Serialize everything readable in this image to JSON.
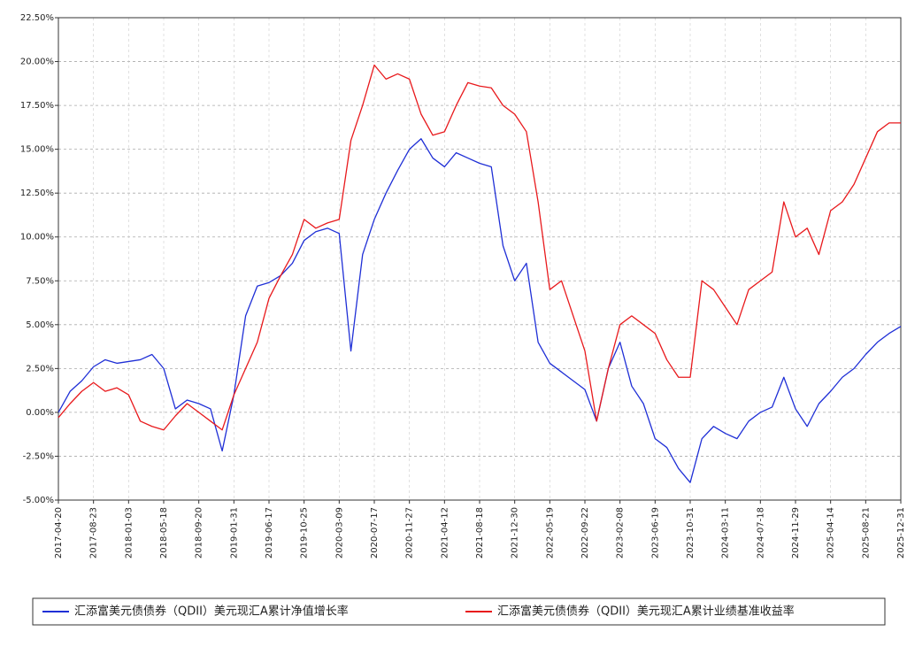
{
  "chart_data": {
    "type": "line",
    "categories": [
      "2017-04-20",
      null,
      null,
      "2017-08-23",
      null,
      null,
      "2018-01-03",
      null,
      null,
      "2018-05-18",
      null,
      null,
      "2018-09-20",
      null,
      null,
      "2019-01-31",
      null,
      null,
      "2019-06-17",
      null,
      null,
      "2019-10-25",
      null,
      null,
      "2020-03-09",
      null,
      null,
      "2020-07-17",
      null,
      null,
      "2020-11-27",
      null,
      null,
      "2021-04-12",
      null,
      null,
      "2021-08-18",
      null,
      null,
      "2021-12-30",
      null,
      null,
      "2022-05-19",
      null,
      null,
      "2022-09-22",
      null,
      null,
      "2023-02-08",
      null,
      null,
      "2023-06-19",
      null,
      null,
      "2023-10-31",
      null,
      null,
      "2024-03-11",
      null,
      null,
      "2024-07-18",
      null,
      null,
      "2024-11-29",
      null,
      null,
      "2025-04-14",
      null,
      null,
      "2025-08-21",
      null,
      null,
      "2025-12-31"
    ],
    "series": [
      {
        "name": "汇添富美元债债券（QDII）美元现汇A累计净值增长率",
        "color": "#1f2fd6",
        "values": [
          0.0,
          1.2,
          1.8,
          2.6,
          3.0,
          2.8,
          2.9,
          3.0,
          3.3,
          2.5,
          0.2,
          0.7,
          0.5,
          0.2,
          -2.2,
          1.0,
          5.5,
          7.2,
          7.4,
          7.8,
          8.5,
          9.8,
          10.3,
          10.5,
          10.2,
          3.5,
          9.0,
          11.0,
          12.5,
          13.8,
          15.0,
          15.6,
          14.5,
          14.0,
          14.8,
          14.5,
          14.2,
          14.0,
          9.5,
          7.5,
          8.5,
          4.0,
          2.8,
          2.3,
          1.8,
          1.3,
          -0.5,
          2.5,
          4.0,
          1.5,
          0.5,
          -1.5,
          -2.0,
          -3.2,
          -4.0,
          -1.5,
          -0.8,
          -1.2,
          -1.5,
          -0.5,
          0.0,
          0.3,
          2.0,
          0.2,
          -0.8,
          0.5,
          1.2,
          2.0,
          2.5,
          3.3,
          4.0,
          4.5,
          4.9
        ]
      },
      {
        "name": "汇添富美元债债券（QDII）美元现汇A累计业绩基准收益率",
        "color": "#e8191c",
        "values": [
          -0.3,
          0.5,
          1.2,
          1.7,
          1.2,
          1.4,
          1.0,
          -0.5,
          -0.8,
          -1.0,
          -0.2,
          0.5,
          0.0,
          -0.5,
          -1.0,
          1.0,
          2.5,
          4.0,
          6.5,
          7.8,
          9.0,
          11.0,
          10.5,
          10.8,
          11.0,
          15.5,
          17.5,
          19.8,
          19.0,
          19.3,
          19.0,
          17.0,
          15.8,
          16.0,
          17.5,
          18.8,
          18.6,
          18.5,
          17.5,
          17.0,
          16.0,
          12.0,
          7.0,
          7.5,
          5.5,
          3.5,
          -0.5,
          2.5,
          5.0,
          5.5,
          5.0,
          4.5,
          3.0,
          2.0,
          2.0,
          7.5,
          7.0,
          6.0,
          5.0,
          7.0,
          7.5,
          8.0,
          12.0,
          10.0,
          10.5,
          9.0,
          11.5,
          12.0,
          13.0,
          14.5,
          16.0,
          16.5,
          16.5
        ]
      }
    ],
    "ylim": [
      -5,
      22.5
    ],
    "yticks": [
      {
        "value": -5,
        "label": "-5.00%"
      },
      {
        "value": -2.5,
        "label": "-2.50%"
      },
      {
        "value": 0,
        "label": "0.00%"
      },
      {
        "value": 2.5,
        "label": "2.50%"
      },
      {
        "value": 5,
        "label": "5.00%"
      },
      {
        "value": 7.5,
        "label": "7.50%"
      },
      {
        "value": 10,
        "label": "10.00%"
      },
      {
        "value": 12.5,
        "label": "12.50%"
      },
      {
        "value": 15,
        "label": "15.00%"
      },
      {
        "value": 17.5,
        "label": "17.50%"
      },
      {
        "value": 20,
        "label": "20.00%"
      },
      {
        "value": 22.5,
        "label": "22.50%"
      }
    ],
    "grid": true
  }
}
